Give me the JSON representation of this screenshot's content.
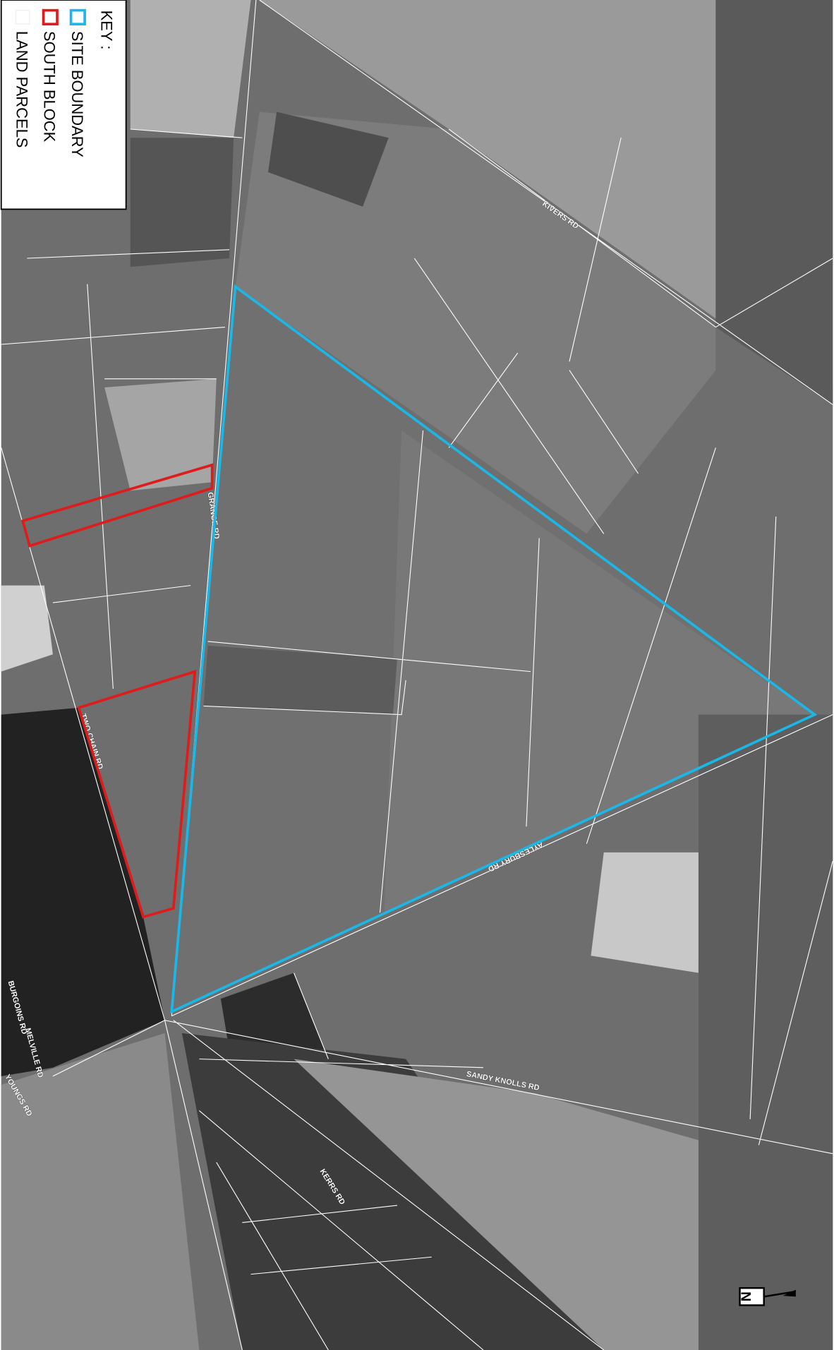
{
  "key": {
    "title": "KEY :",
    "items": [
      {
        "label": "SITE BOUNDARY",
        "color": "#1ab8e8"
      },
      {
        "label": "SOUTH BLOCK",
        "color": "#e01b1b"
      },
      {
        "label": "LAND PARCELS",
        "color": "#ffffff"
      }
    ]
  },
  "roads": [
    "KIVERS RD",
    "GRANGE RD",
    "TWO CHAIN RD",
    "AYLESBURY RD",
    "SANDY KNOLLS RD",
    "KERRS RD",
    "BURGOINS RD",
    "MELVILLE RD",
    "YOUNGS RD"
  ],
  "north_arrow": "N"
}
